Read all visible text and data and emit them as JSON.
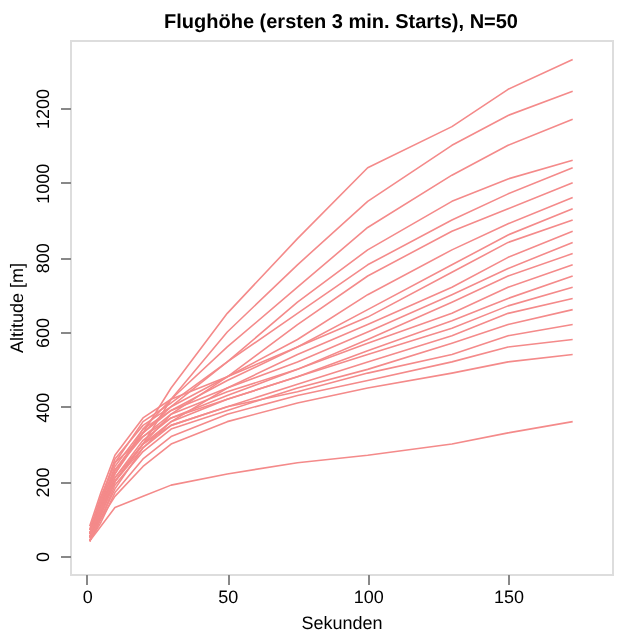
{
  "chart_data": {
    "type": "line",
    "title": "Flughöhe (ersten 3 min. Starts), N=50",
    "xlabel": "Sekunden",
    "ylabel": "Altitude [m]",
    "x": [
      1,
      5,
      10,
      20,
      30,
      50,
      75,
      100,
      130,
      150,
      173
    ],
    "xlim": [
      -6,
      187
    ],
    "xticks": [
      0,
      50,
      100,
      150
    ],
    "ylim": [
      -48,
      1382
    ],
    "yticks": [
      0,
      200,
      400,
      600,
      800,
      1000,
      1200
    ],
    "grid": false,
    "legend": false,
    "marker": "none",
    "line_style": "solid",
    "series": [
      {
        "color": "#f48a8a",
        "values": [
          50,
          150,
          230,
          330,
          450,
          650,
          850,
          1040,
          1150,
          1250,
          1330
        ]
      },
      {
        "color": "#f48a8a",
        "values": [
          40,
          120,
          200,
          300,
          420,
          600,
          780,
          950,
          1100,
          1180,
          1245
        ]
      },
      {
        "color": "#f48a8a",
        "values": [
          60,
          140,
          220,
          340,
          420,
          560,
          720,
          880,
          1020,
          1100,
          1170
        ]
      },
      {
        "color": "#f48a8a",
        "values": [
          50,
          130,
          220,
          330,
          400,
          520,
          680,
          820,
          950,
          1010,
          1060
        ]
      },
      {
        "color": "#f48a8a",
        "values": [
          70,
          160,
          250,
          360,
          410,
          520,
          650,
          780,
          900,
          970,
          1040
        ]
      },
      {
        "color": "#f48a8a",
        "values": [
          40,
          110,
          200,
          300,
          380,
          480,
          620,
          750,
          870,
          930,
          1000
        ]
      },
      {
        "color": "#f48a8a",
        "values": [
          60,
          150,
          260,
          350,
          400,
          480,
          580,
          700,
          820,
          890,
          960
        ]
      },
      {
        "color": "#f48a8a",
        "values": [
          50,
          120,
          230,
          330,
          390,
          470,
          560,
          660,
          780,
          860,
          930
        ]
      },
      {
        "color": "#f48a8a",
        "values": [
          80,
          170,
          270,
          370,
          420,
          480,
          560,
          640,
          760,
          840,
          900
        ]
      },
      {
        "color": "#f48a8a",
        "values": [
          40,
          100,
          180,
          290,
          360,
          450,
          540,
          620,
          720,
          800,
          870
        ]
      },
      {
        "color": "#f48a8a",
        "values": [
          60,
          140,
          240,
          340,
          390,
          450,
          520,
          600,
          700,
          770,
          840
        ]
      },
      {
        "color": "#f48a8a",
        "values": [
          50,
          120,
          210,
          310,
          370,
          430,
          500,
          580,
          680,
          750,
          810
        ]
      },
      {
        "color": "#f48a8a",
        "values": [
          70,
          150,
          250,
          320,
          380,
          440,
          500,
          570,
          650,
          720,
          780
        ]
      },
      {
        "color": "#f48a8a",
        "values": [
          40,
          110,
          200,
          300,
          360,
          420,
          480,
          550,
          630,
          690,
          750
        ]
      },
      {
        "color": "#f48a8a",
        "values": [
          60,
          130,
          230,
          320,
          370,
          420,
          480,
          540,
          610,
          670,
          720
        ]
      },
      {
        "color": "#f48a8a",
        "values": [
          50,
          120,
          200,
          290,
          350,
          400,
          460,
          520,
          590,
          650,
          690
        ]
      },
      {
        "color": "#f48a8a",
        "values": [
          40,
          100,
          190,
          280,
          340,
          390,
          450,
          500,
          570,
          620,
          660
        ]
      },
      {
        "color": "#f48a8a",
        "values": [
          60,
          130,
          210,
          300,
          350,
          400,
          440,
          490,
          540,
          590,
          620
        ]
      },
      {
        "color": "#f48a8a",
        "values": [
          40,
          90,
          170,
          260,
          320,
          380,
          430,
          470,
          520,
          560,
          580
        ]
      },
      {
        "color": "#f48a8a",
        "values": [
          50,
          100,
          160,
          240,
          300,
          360,
          410,
          450,
          490,
          520,
          540
        ]
      },
      {
        "color": "#f48a8a",
        "values": [
          40,
          80,
          130,
          160,
          190,
          220,
          250,
          270,
          300,
          330,
          360
        ]
      }
    ]
  }
}
